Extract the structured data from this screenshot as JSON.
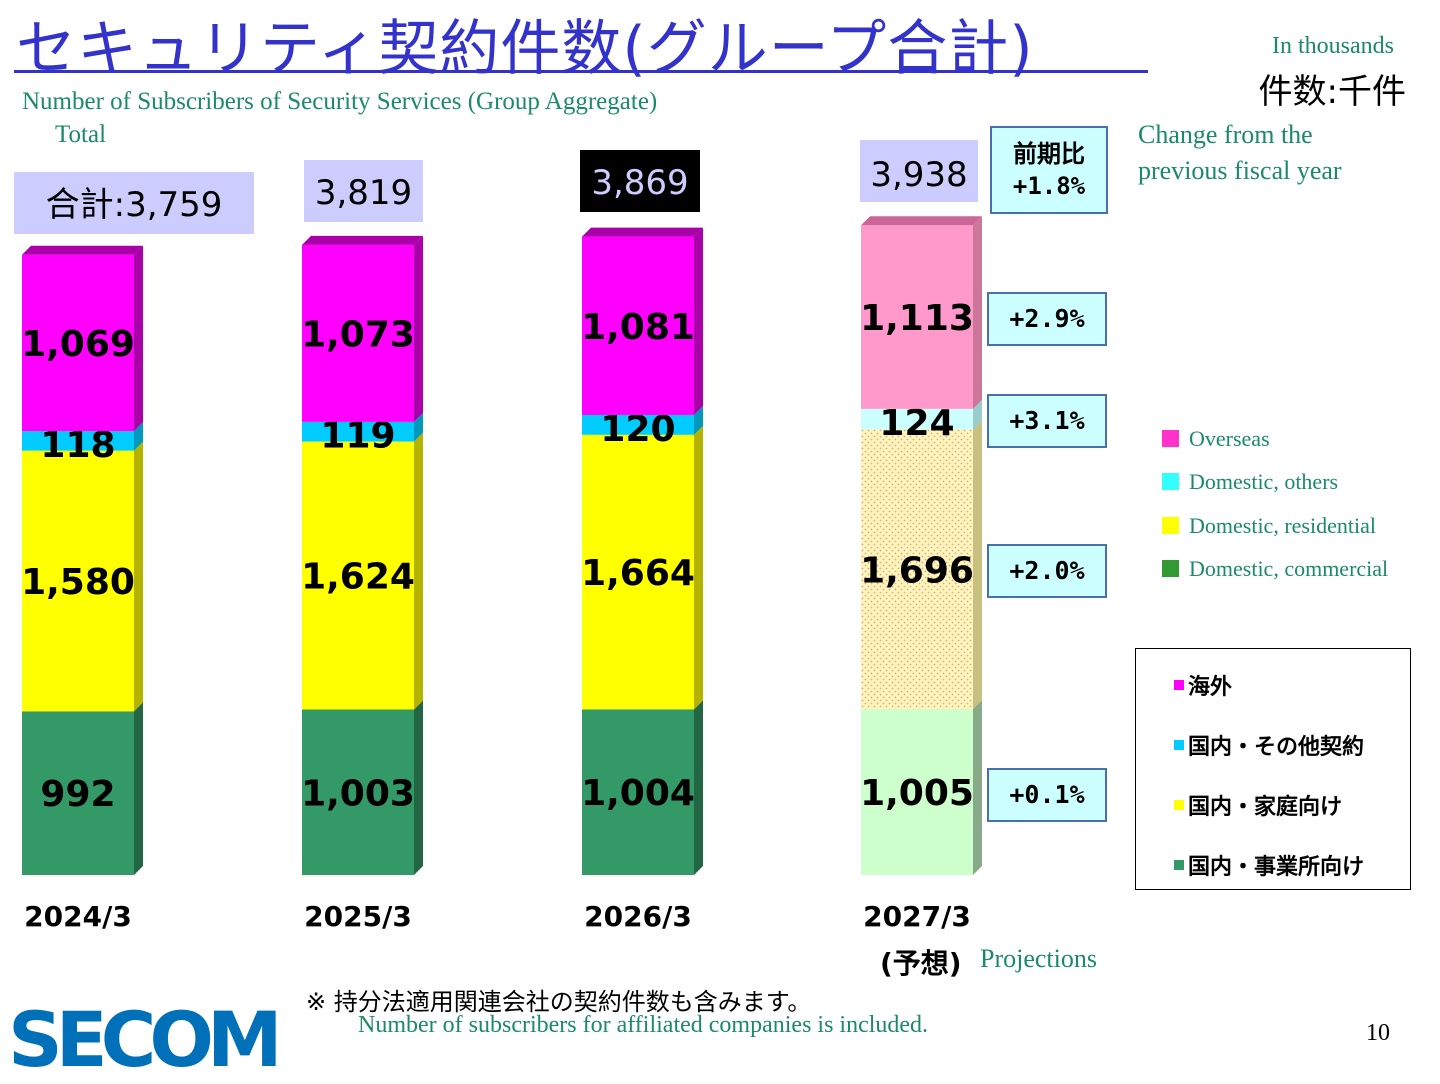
{
  "header": {
    "title_jp": "セキュリティ契約件数(グループ合計)",
    "unit_en": "In thousands",
    "unit_jp": "件数:千件",
    "subtitle_en": "Number of Subscribers of Security Services (Group Aggregate)",
    "total_en": "Total",
    "change_en": "Change from the previous fiscal year",
    "change_jp_line1": "前期比",
    "change_jp_line2": "+1.8%"
  },
  "totals": {
    "first_prefix": "合計:",
    "values": [
      "3,759",
      "3,819",
      "3,869",
      "3,938"
    ]
  },
  "chart_data": {
    "type": "bar",
    "stacked": true,
    "categories": [
      "2024/3",
      "2025/3",
      "2026/3",
      "2027/3"
    ],
    "projection_label_jp": "(予想)",
    "projection_label_en": "Projections",
    "series": [
      {
        "name": "Domestic, commercial",
        "name_jp": "国内・事業所向け",
        "color": "#339966",
        "values": [
          992,
          1003,
          1004,
          1005
        ],
        "labels": [
          "992",
          "1,003",
          "1,004",
          "1,005"
        ]
      },
      {
        "name": "Domestic, residential",
        "name_jp": "国内・家庭向け",
        "color": "#ffff00",
        "values": [
          1580,
          1624,
          1664,
          1696
        ],
        "labels": [
          "1,580",
          "1,624",
          "1,664",
          "1,696"
        ]
      },
      {
        "name": "Domestic, others",
        "name_jp": "国内・その他契約",
        "color": "#00ccff",
        "values": [
          118,
          119,
          120,
          124
        ],
        "labels": [
          "118",
          "119",
          "120",
          "124"
        ]
      },
      {
        "name": "Overseas",
        "name_jp": "海外",
        "color": "#ff00ff",
        "values": [
          1069,
          1073,
          1081,
          1113
        ],
        "labels": [
          "1,069",
          "1,073",
          "1,081",
          "1,113"
        ]
      }
    ],
    "projection_colors": [
      "#ccffcc",
      "#fff5b0",
      "#ccffff",
      "#ff99cc"
    ],
    "yoy_changes": [
      "+0.1%",
      "+2.0%",
      "+3.1%",
      "+2.9%"
    ]
  },
  "legend_en": [
    "Overseas",
    "Domestic, others",
    "Domestic, residential",
    "Domestic, commercial"
  ],
  "legend_jp": [
    "海外",
    "国内・その他契約",
    "国内・家庭向け",
    "国内・事業所向け"
  ],
  "footer": {
    "note_jp": "※ 持分法適用関連会社の契約件数も含みます。",
    "note_en": "Number of subscribers for affiliated companies is included.",
    "page_number": "10",
    "logo": "SECOM"
  }
}
